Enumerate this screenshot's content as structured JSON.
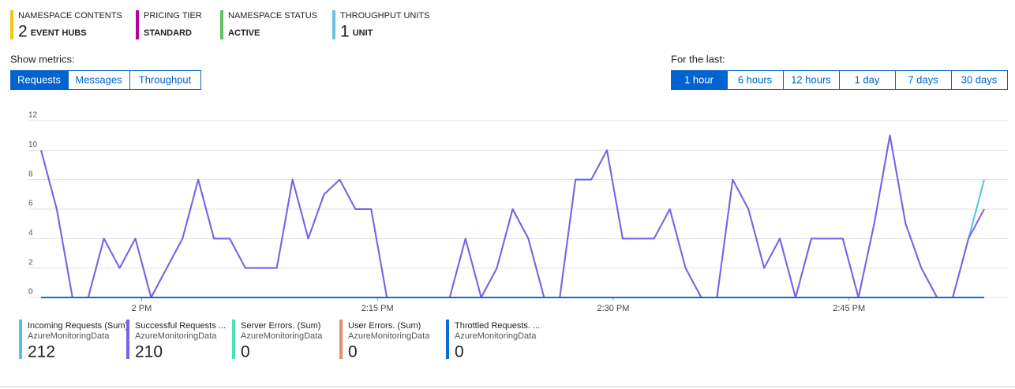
{
  "tiles": [
    {
      "label": "NAMESPACE CONTENTS",
      "value": "2",
      "unit": "EVENT HUBS",
      "color": "#f2c811"
    },
    {
      "label": "PRICING TIER",
      "value": "",
      "unit": "STANDARD",
      "color": "#b4009e"
    },
    {
      "label": "NAMESPACE STATUS",
      "value": "",
      "unit": "ACTIVE",
      "color": "#5cc35c"
    },
    {
      "label": "THROUGHPUT UNITS",
      "value": "1",
      "unit": "UNIT",
      "color": "#6cc0e5"
    }
  ],
  "metrics": {
    "label": "Show metrics:",
    "options": [
      "Requests",
      "Messages",
      "Throughput"
    ],
    "selected": 0
  },
  "range": {
    "label": "For the last:",
    "options": [
      "1 hour",
      "6 hours",
      "12 hours",
      "1 day",
      "7 days",
      "30 days"
    ],
    "selected": 0
  },
  "chart_data": {
    "type": "line",
    "x": [
      0,
      1,
      2,
      3,
      4,
      5,
      6,
      7,
      8,
      9,
      10,
      11,
      12,
      13,
      14,
      15,
      16,
      17,
      18,
      19,
      20,
      21,
      22,
      23,
      24,
      25,
      26,
      27,
      28,
      29,
      30,
      31,
      32,
      33,
      34,
      35,
      36,
      37,
      38,
      39,
      40,
      41,
      42,
      43,
      44,
      45,
      46,
      47,
      48,
      49,
      50,
      51,
      52,
      53,
      54,
      55,
      56,
      57,
      58,
      59,
      60
    ],
    "xlim": [
      0,
      60
    ],
    "xticks": [
      {
        "value": 6.4,
        "label": "2 PM"
      },
      {
        "value": 21.4,
        "label": "2:15 PM"
      },
      {
        "value": 36.4,
        "label": "2:30 PM"
      },
      {
        "value": 51.4,
        "label": "2:45 PM"
      }
    ],
    "ylim": [
      0,
      12
    ],
    "yticks": [
      0,
      2,
      4,
      6,
      8,
      10,
      12
    ],
    "grid": true,
    "series": [
      {
        "name": "Incoming Requests (Sum)",
        "color": "#4fc3e8",
        "values": [
          10,
          6,
          0,
          0,
          4,
          2,
          4,
          0,
          2,
          4,
          8,
          4,
          4,
          2,
          2,
          2,
          8,
          4,
          7,
          8,
          6,
          6,
          0,
          0,
          0,
          0,
          0,
          4,
          0,
          2,
          6,
          4,
          0,
          0,
          8,
          8,
          10,
          4,
          4,
          4,
          6,
          2,
          0,
          0,
          8,
          6,
          2,
          4,
          0,
          4,
          4,
          4,
          0,
          5,
          11,
          5,
          2,
          0,
          0,
          4,
          8
        ]
      },
      {
        "name": "Successful Requests ...",
        "color": "#7b61e6",
        "values": [
          10,
          6,
          0,
          0,
          4,
          2,
          4,
          0,
          2,
          4,
          8,
          4,
          4,
          2,
          2,
          2,
          8,
          4,
          7,
          8,
          6,
          6,
          0,
          0,
          0,
          0,
          0,
          4,
          0,
          2,
          6,
          4,
          0,
          0,
          8,
          8,
          10,
          4,
          4,
          4,
          6,
          2,
          0,
          0,
          8,
          6,
          2,
          4,
          0,
          4,
          4,
          4,
          0,
          5,
          11,
          5,
          2,
          0,
          0,
          4,
          6
        ]
      },
      {
        "name": "Server Errors. (Sum)",
        "color": "#47e3b6",
        "values": [
          0,
          0,
          0,
          0,
          0,
          0,
          0,
          0,
          0,
          0,
          0,
          0,
          0,
          0,
          0,
          0,
          0,
          0,
          0,
          0,
          0,
          0,
          0,
          0,
          0,
          0,
          0,
          0,
          0,
          0,
          0,
          0,
          0,
          0,
          0,
          0,
          0,
          0,
          0,
          0,
          0,
          0,
          0,
          0,
          0,
          0,
          0,
          0,
          0,
          0,
          0,
          0,
          0,
          0,
          0,
          0,
          0,
          0,
          0,
          0,
          0
        ]
      },
      {
        "name": "User Errors. (Sum)",
        "color": "#e0906f",
        "values": [
          0,
          0,
          0,
          0,
          0,
          0,
          0,
          0,
          0,
          0,
          0,
          0,
          0,
          0,
          0,
          0,
          0,
          0,
          0,
          0,
          0,
          0,
          0,
          0,
          0,
          0,
          0,
          0,
          0,
          0,
          0,
          0,
          0,
          0,
          0,
          0,
          0,
          0,
          0,
          0,
          0,
          0,
          0,
          0,
          0,
          0,
          0,
          0,
          0,
          0,
          0,
          0,
          0,
          0,
          0,
          0,
          0,
          0,
          0,
          0,
          0
        ]
      },
      {
        "name": "Throttled Requests. ...",
        "color": "#1167d8",
        "values": [
          0,
          0,
          0,
          0,
          0,
          0,
          0,
          0,
          0,
          0,
          0,
          0,
          0,
          0,
          0,
          0,
          0,
          0,
          0,
          0,
          0,
          0,
          0,
          0,
          0,
          0,
          0,
          0,
          0,
          0,
          0,
          0,
          0,
          0,
          0,
          0,
          0,
          0,
          0,
          0,
          0,
          0,
          0,
          0,
          0,
          0,
          0,
          0,
          0,
          0,
          0,
          0,
          0,
          0,
          0,
          0,
          0,
          0,
          0,
          0,
          0
        ]
      }
    ]
  },
  "summary": [
    {
      "source": "AzureMonitoringData",
      "total": 212
    },
    {
      "source": "AzureMonitoringData",
      "total": 210
    },
    {
      "source": "AzureMonitoringData",
      "total": 0
    },
    {
      "source": "AzureMonitoringData",
      "total": 0
    },
    {
      "source": "AzureMonitoringData",
      "total": 0
    }
  ]
}
